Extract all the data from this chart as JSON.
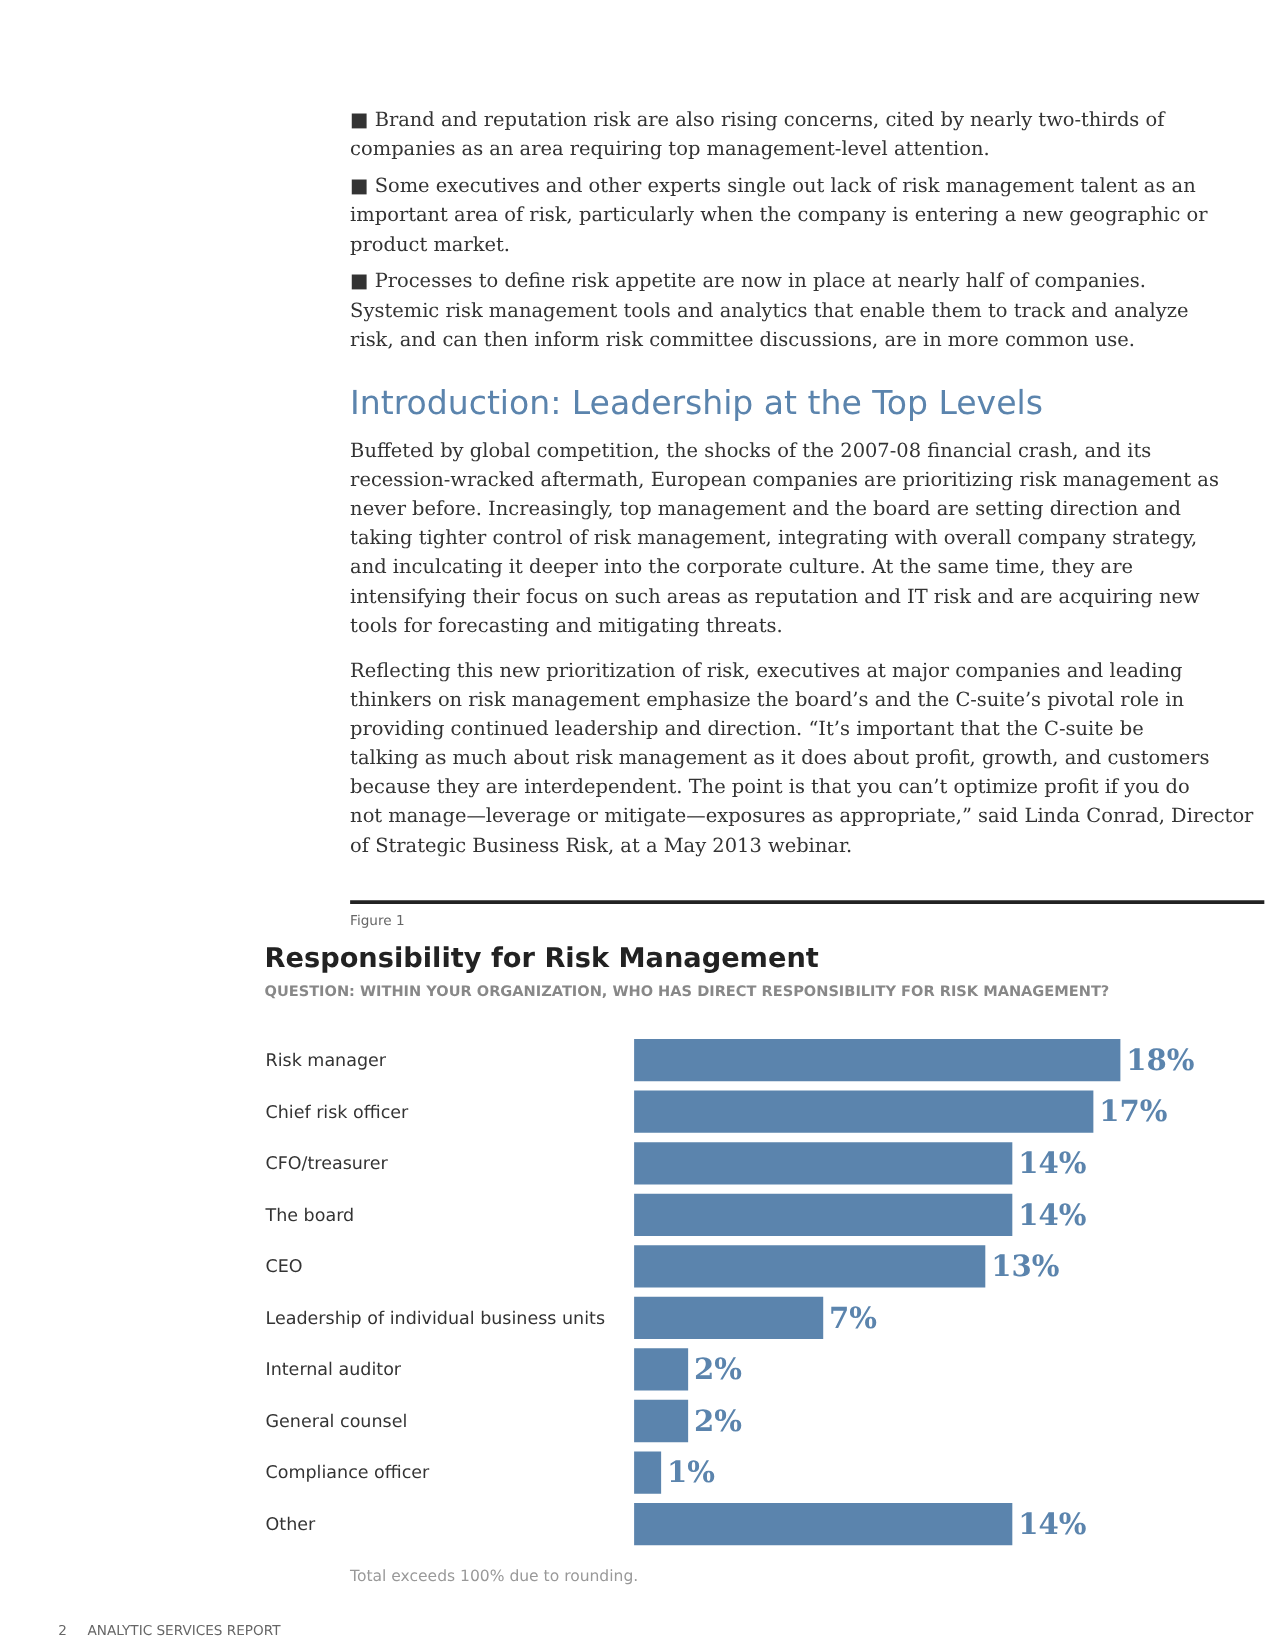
{
  "chart_data": {
    "type": "bar",
    "orientation": "horizontal",
    "title": "Responsibility for Risk Management",
    "subtitle": "QUESTION: WITHIN YOUR ORGANIZATION, WHO HAS DIRECT RESPONSIBILITY FOR RISK MANAGEMENT?",
    "categories": [
      "Risk manager",
      "Chief risk officer",
      "CFO/treasurer",
      "The board",
      "CEO",
      "Leadership of individual business units",
      "Internal auditor",
      "General counsel",
      "Compliance officer",
      "Other"
    ],
    "values": [
      18,
      17,
      14,
      14,
      13,
      7,
      2,
      2,
      1,
      14
    ],
    "value_labels": [
      "18%",
      "17%",
      "14%",
      "14%",
      "13%",
      "7%",
      "2%",
      "2%",
      "1%",
      "14%"
    ],
    "color": "#5b84ad",
    "annotations": [
      "■ Brand and reputation risk are also rising concerns, cited by nearly two-thirds of companies as an area requiring top management-level attention.",
      "■ Some executives and other experts single out lack of risk management talent as an important area of risk, particularly when the company is entering a new geographic or product market.",
      "■ Processes to define risk appetite are now in place at nearly half of companies. Systemic risk management tools and analytics that enable them to track and analyze risk, and can then inform risk committee discussions, are in more common use.",
      "Introduction: Leadership at the Top Levels",
      "Buffeted by global competition, the shocks of the 2007-08 financial crash, and its recession-wracked aftermath, European companies are prioritizing risk management as never before. Increasingly, top management and the board are setting direction and taking tighter control of risk management, integrating with overall company strategy, and inculcating it deeper into the corporate culture. At the same time, they are intensifying their focus on such areas as reputation and IT risk and are acquiring new tools for forecasting and mitigating threats.",
      "Reflecting this new prioritization of risk, executives at major companies and leading thinkers on risk management emphasize the board’s and the C-suite’s pivotal role in providing continued leadership and direction. “It’s important that the C-suite be talking as much about risk management as it does about profit, growth, and customers because they are interdependent. The point is that you can’t optimize profit if you do not manage—leverage or mitigate—exposures as appropriate,” said Linda Conrad, Director of Strategic Business Risk, at a May 2013 webinar.",
      "Figure 1",
      "Total exceeds 100% due to rounding.",
      "2",
      "ANALYTIC SERVICES REPORT"
    ]
  }
}
